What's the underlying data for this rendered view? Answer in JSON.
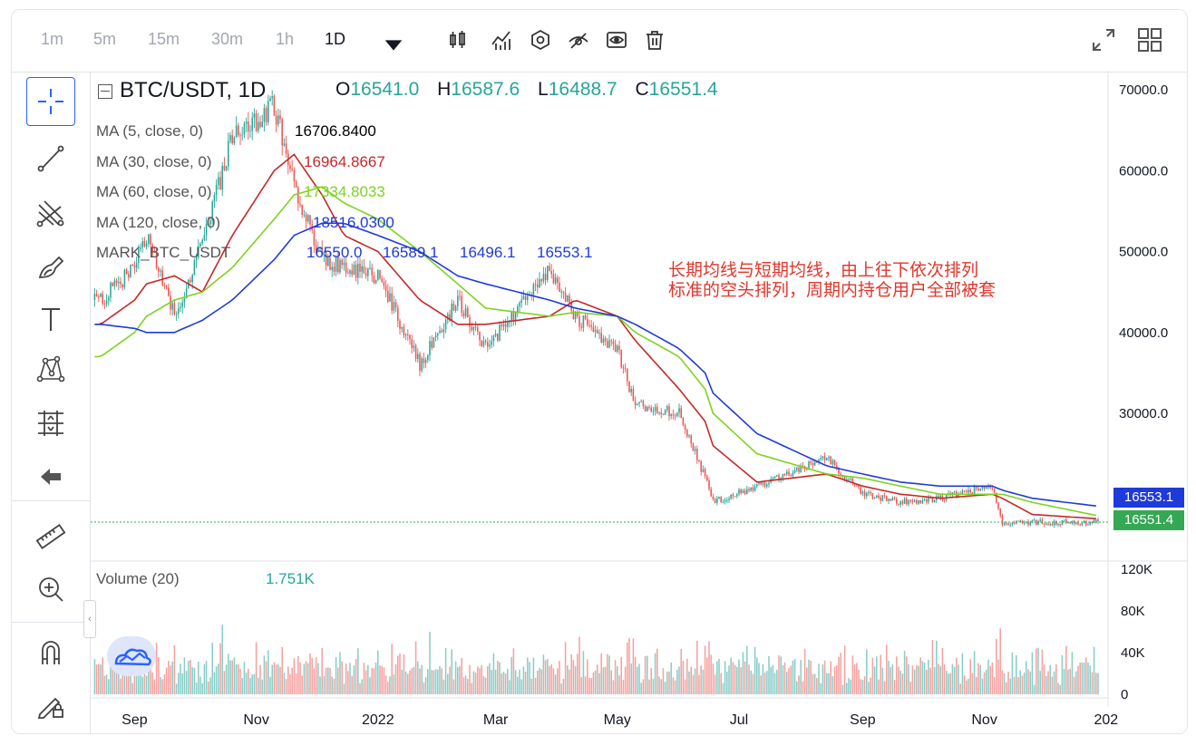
{
  "toolbar": {
    "timeframes": [
      "1m",
      "5m",
      "15m",
      "30m",
      "1h",
      "1D"
    ],
    "active_timeframe": "1D",
    "icons": [
      "candle-type-icon",
      "indicators-icon",
      "settings-hex-icon",
      "hide-drawings-icon",
      "visibility-icon",
      "trash-icon",
      "fullscreen-icon",
      "layout-grid-icon"
    ]
  },
  "left_tools": [
    "crosshair-icon",
    "trendline-icon",
    "pitchfork-icon",
    "brush-icon",
    "text-icon",
    "pattern-icon",
    "measure-ruler-icon",
    "back-arrow-icon",
    "ruler-icon",
    "zoom-in-icon",
    "magnet-icon",
    "lock-drawing-icon"
  ],
  "symbol": {
    "name": "BTC/USDT, 1D"
  },
  "ohlc": {
    "o_label": "O",
    "o": "16541.0",
    "h_label": "H",
    "h": "16587.6",
    "l_label": "L",
    "l": "16488.7",
    "c_label": "C",
    "c": "16551.4"
  },
  "indicators": [
    {
      "label": "MA (5, close, 0)",
      "value": "16706.8400",
      "color": "#000000"
    },
    {
      "label": "MA (30, close, 0)",
      "value": "16964.8667",
      "color": "#c62828"
    },
    {
      "label": "MA (60, close, 0)",
      "value": "17334.8033",
      "color": "#7ed321"
    },
    {
      "label": "MA (120, close, 0)",
      "value": "18516.0300",
      "color": "#1e3adb"
    },
    {
      "label": "MARK_BTC_USDT",
      "values": [
        "16550.0",
        "16589.1",
        "16496.1",
        "16553.1"
      ],
      "color": "#1e3adb"
    }
  ],
  "annotation": {
    "line1": "长期均线与短期均线，由上往下依次排列",
    "line2": "标准的空头排列，周期内持仓用户全部被套"
  },
  "price_labels": {
    "mark": "16553.1",
    "mark_color": "#1e3adb",
    "last": "16551.4",
    "last_color": "#34a853"
  },
  "volume": {
    "label": "Volume (20)",
    "value": "1.751K"
  },
  "chart_data": {
    "type": "line",
    "title": "BTC/USDT, 1D",
    "price_axis_ticks": [
      "70000.0",
      "60000.0",
      "50000.0",
      "40000.0",
      "30000.0"
    ],
    "volume_axis_ticks": [
      "120K",
      "80K",
      "40K",
      "0"
    ],
    "x_ticks": [
      "Sep",
      "Nov",
      "2022",
      "Mar",
      "May",
      "Jul",
      "Sep",
      "Nov",
      "202"
    ],
    "ylim": [
      10000,
      72000
    ],
    "x": [
      "2021-08-15",
      "2021-09-01",
      "2021-09-07",
      "2021-09-21",
      "2021-10-05",
      "2021-10-20",
      "2021-11-10",
      "2021-11-20",
      "2021-12-04",
      "2021-12-15",
      "2022-01-01",
      "2022-01-22",
      "2022-02-10",
      "2022-02-24",
      "2022-03-28",
      "2022-04-10",
      "2022-05-01",
      "2022-05-10",
      "2022-06-01",
      "2022-06-14",
      "2022-06-18",
      "2022-07-10",
      "2022-08-14",
      "2022-09-01",
      "2022-09-20",
      "2022-10-10",
      "2022-11-05",
      "2022-11-10",
      "2022-11-25",
      "2022-12-28"
    ],
    "series": [
      {
        "name": "BTC/USDT",
        "values": [
          44000,
          48000,
          52000,
          42000,
          51000,
          64000,
          68000,
          58000,
          49000,
          48000,
          47000,
          36000,
          44000,
          38000,
          47500,
          42000,
          38000,
          31000,
          30000,
          22000,
          19000,
          21000,
          24500,
          20000,
          19000,
          19500,
          21000,
          16500,
          16500,
          16551
        ]
      },
      {
        "name": "MA (30, close, 0)",
        "values": [
          41000,
          44000,
          46000,
          47000,
          45000,
          52000,
          60000,
          62000,
          57000,
          52000,
          50000,
          44000,
          41000,
          41000,
          42000,
          44000,
          42000,
          39000,
          33000,
          29000,
          26000,
          21500,
          22500,
          21000,
          20000,
          19500,
          20000,
          19500,
          17500,
          16965
        ]
      },
      {
        "name": "MA (60, close, 0)",
        "values": [
          37000,
          40000,
          42000,
          44000,
          45000,
          48000,
          54000,
          57000,
          58000,
          56000,
          54000,
          50000,
          46000,
          43000,
          42000,
          42500,
          42000,
          40000,
          37000,
          33000,
          30000,
          25000,
          22500,
          22000,
          21000,
          20000,
          20000,
          20000,
          19000,
          17335
        ]
      },
      {
        "name": "MA (120, close, 0)",
        "values": [
          41000,
          40500,
          40000,
          40000,
          41500,
          44000,
          49000,
          52000,
          53500,
          53500,
          52000,
          50000,
          47000,
          46000,
          44000,
          43000,
          42000,
          41000,
          38000,
          35000,
          32500,
          27500,
          23500,
          22500,
          21500,
          21000,
          21000,
          20500,
          19500,
          18516
        ]
      }
    ]
  }
}
